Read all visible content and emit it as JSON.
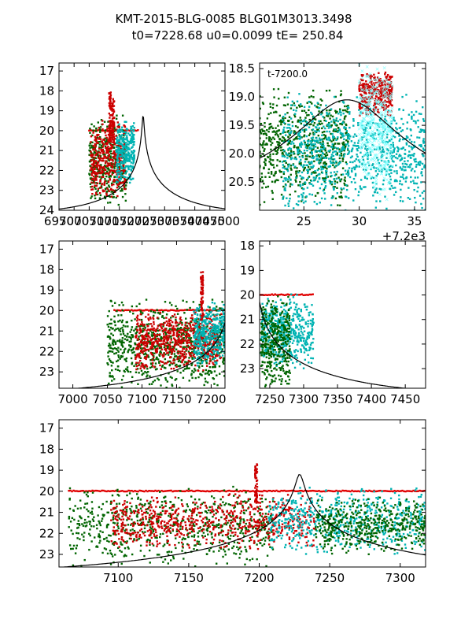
{
  "figure": {
    "title_line1": "KMT-2015-BLG-0085 BLG01M3013.3498",
    "title_line2": "t0=7228.68 u0=0.0099 tE= 250.84"
  },
  "colors": {
    "green": "#006400",
    "red": "#cc0000",
    "cyan": "#00b3b3",
    "lightcyan": "#80ffff",
    "model": "#000000",
    "flat_red": "#e00000"
  },
  "chart_data": [
    {
      "type": "scatter",
      "panel": "top-left",
      "xlim": [
        6950,
        7500
      ],
      "ylim": [
        24,
        16.6
      ],
      "ylabel_inverted": true,
      "xticks": [
        6950,
        7000,
        7050,
        7100,
        7150,
        7200,
        7250,
        7300,
        7350,
        7400,
        7450,
        7500
      ],
      "xtick_labels": [
        "6950",
        "7000",
        "7050",
        "7100",
        "7150",
        "7200",
        "7250",
        "7300",
        "7350",
        "7400",
        "7450",
        "7500"
      ],
      "yticks": [
        17,
        18,
        19,
        20,
        21,
        22,
        23,
        24
      ],
      "ytick_labels": [
        "17",
        "18",
        "19",
        "20",
        "21",
        "22",
        "23",
        "24"
      ],
      "flat_line": {
        "y": 20.0,
        "x": [
          7050,
          7215
        ]
      },
      "clusters": [
        {
          "series": "green",
          "x": [
            7050,
            7175
          ],
          "y": [
            19.6,
            23.5
          ]
        },
        {
          "series": "red",
          "x": [
            7055,
            7170
          ],
          "y": [
            19.8,
            23.2
          ]
        },
        {
          "series": "cyan",
          "x": [
            7140,
            7200
          ],
          "y": [
            19.5,
            22.5
          ]
        }
      ],
      "spikes": [
        {
          "x": 7120,
          "top": 18.0
        },
        {
          "x": 7130,
          "top": 18.4
        }
      ],
      "model": {
        "t0": 7228.68,
        "tE": 250.84,
        "base": 24.2,
        "peak": 18.9
      }
    },
    {
      "type": "scatter",
      "panel": "top-right",
      "xlim": [
        21,
        36
      ],
      "ylim": [
        21.0,
        18.4
      ],
      "ylabel_inverted": true,
      "annotation": "t-7200.0",
      "offset_label": "+7.2e3",
      "xticks": [
        25,
        30,
        35
      ],
      "xtick_labels": [
        "25",
        "30",
        "35"
      ],
      "yticks": [
        18.5,
        19.0,
        19.5,
        20.0,
        20.5
      ],
      "ytick_labels": [
        "18.5",
        "19.0",
        "19.5",
        "20.0",
        "20.5"
      ],
      "flat_line": null,
      "clusters": [
        {
          "series": "green",
          "x": [
            21,
            29
          ],
          "y": [
            19.0,
            20.8
          ]
        },
        {
          "series": "cyan",
          "x": [
            23,
            36
          ],
          "y": [
            19.1,
            20.9
          ]
        },
        {
          "series": "red",
          "x": [
            30,
            33
          ],
          "y": [
            18.6,
            19.3
          ]
        },
        {
          "series": "lightcyan",
          "x": [
            30,
            33
          ],
          "y": [
            18.5,
            20.6
          ]
        }
      ],
      "model": {
        "t0": 7228.68,
        "tE": 250.84,
        "base": 24.2,
        "peak": 19.05,
        "center": 28.9,
        "width": 3.6
      }
    },
    {
      "type": "scatter",
      "panel": "middle-left",
      "xlim": [
        6980,
        7220
      ],
      "ylim": [
        23.8,
        16.6
      ],
      "ylabel_inverted": true,
      "xticks": [
        7000,
        7050,
        7100,
        7150,
        7200
      ],
      "xtick_labels": [
        "7000",
        "7050",
        "7100",
        "7150",
        "7200"
      ],
      "yticks": [
        17,
        18,
        19,
        20,
        21,
        22,
        23
      ],
      "ytick_labels": [
        "17",
        "18",
        "19",
        "20",
        "21",
        "22",
        "23"
      ],
      "flat_line": {
        "y": 20.0,
        "x": [
          7060,
          7220
        ]
      },
      "clusters": [
        {
          "series": "green",
          "x": [
            7050,
            7220
          ],
          "y": [
            19.8,
            23.6
          ]
        },
        {
          "series": "red",
          "x": [
            7090,
            7215
          ],
          "y": [
            20.2,
            22.8
          ]
        },
        {
          "series": "cyan",
          "x": [
            7175,
            7220
          ],
          "y": [
            19.8,
            22.5
          ]
        }
      ],
      "spikes": [
        {
          "x": 7187,
          "top": 18.1
        }
      ],
      "model": {
        "t0": 7228.68,
        "tE": 250.84,
        "base": 24.2,
        "peak": 18.9
      }
    },
    {
      "type": "scatter",
      "panel": "middle-right",
      "xlim": [
        7235,
        7480
      ],
      "ylim": [
        23.8,
        17.8
      ],
      "ylabel_inverted": true,
      "xticks": [
        7250,
        7300,
        7350,
        7400,
        7450
      ],
      "xtick_labels": [
        "7250",
        "7300",
        "7350",
        "7400",
        "7450"
      ],
      "yticks": [
        18,
        19,
        20,
        21,
        22,
        23
      ],
      "ytick_labels": [
        "18",
        "19",
        "20",
        "21",
        "22",
        "23"
      ],
      "flat_line": {
        "y": 20.0,
        "x": [
          7237,
          7315
        ]
      },
      "clusters": [
        {
          "series": "cyan",
          "x": [
            7237,
            7315
          ],
          "y": [
            20.2,
            22.8
          ]
        },
        {
          "series": "green",
          "x": [
            7237,
            7280
          ],
          "y": [
            20.3,
            23.6
          ]
        }
      ],
      "model": {
        "t0": 7228.68,
        "tE": 250.84,
        "base": 24.2,
        "peak": 18.9
      }
    },
    {
      "type": "scatter",
      "panel": "bottom",
      "xlim": [
        7058,
        7318
      ],
      "ylim": [
        23.6,
        16.6
      ],
      "ylabel_inverted": true,
      "xticks": [
        7100,
        7150,
        7200,
        7250,
        7300
      ],
      "xtick_labels": [
        "7100",
        "7150",
        "7200",
        "7250",
        "7300"
      ],
      "yticks": [
        17,
        18,
        19,
        20,
        21,
        22,
        23
      ],
      "ytick_labels": [
        "17",
        "18",
        "19",
        "20",
        "21",
        "22",
        "23"
      ],
      "flat_line": {
        "y": 20.0,
        "x": [
          7065,
          7318
        ]
      },
      "clusters": [
        {
          "series": "green",
          "x": [
            7065,
            7210
          ],
          "y": [
            20.0,
            23.4
          ]
        },
        {
          "series": "red",
          "x": [
            7095,
            7240
          ],
          "y": [
            20.3,
            22.6
          ]
        },
        {
          "series": "cyan",
          "x": [
            7205,
            7318
          ],
          "y": [
            20.0,
            22.8
          ]
        },
        {
          "series": "green",
          "x": [
            7240,
            7318
          ],
          "y": [
            20.5,
            22.8
          ]
        }
      ],
      "spikes": [
        {
          "x": 7198,
          "top": 18.7
        }
      ],
      "model": {
        "t0": 7228.68,
        "tE": 250.84,
        "base": 24.2,
        "peak": 18.9,
        "bump": true
      }
    }
  ]
}
